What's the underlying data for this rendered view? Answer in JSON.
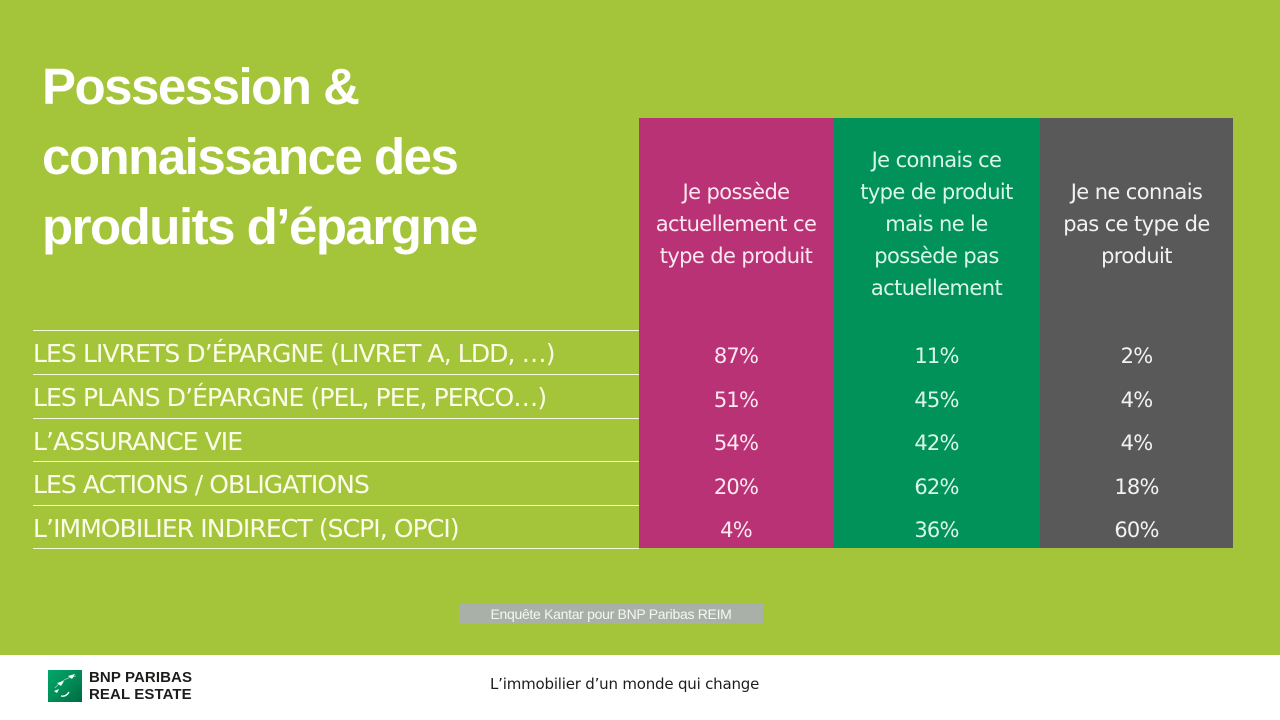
{
  "title": {
    "lines": [
      "Possession &",
      "connaissance des",
      "produits d’épargne"
    ]
  },
  "colors": {
    "background": "#a4c43a",
    "col_own": "#b93275",
    "col_know": "#009258",
    "col_unknown": "#595959"
  },
  "columns": [
    {
      "lines": [
        "Je possède",
        "actuellement ce",
        "type de produit"
      ]
    },
    {
      "lines": [
        "Je connais ce",
        "type de produit",
        "mais ne le",
        "possède pas",
        "actuellement"
      ]
    },
    {
      "lines": [
        "Je ne connais",
        "pas ce type de",
        "produit"
      ]
    }
  ],
  "rows": [
    {
      "label": "LES LIVRETS D’ÉPARGNE (LIVRET A, LDD, …)",
      "values": [
        "87%",
        "11%",
        "2%"
      ]
    },
    {
      "label": "LES PLANS D’ÉPARGNE (PEL, PEE, PERCO…)",
      "values": [
        "51%",
        "45%",
        "4%"
      ]
    },
    {
      "label": "L’ASSURANCE VIE",
      "values": [
        "54%",
        "42%",
        "4%"
      ]
    },
    {
      "label": "LES ACTIONS / OBLIGATIONS",
      "values": [
        "20%",
        "62%",
        "18%"
      ]
    },
    {
      "label": "L’IMMOBILIER INDIRECT (SCPI, OPCI)",
      "values": [
        "4%",
        "36%",
        "60%"
      ]
    }
  ],
  "source": "Enquête Kantar pour BNP Paribas REIM",
  "footer": {
    "brand_lines": [
      "BNP PARIBAS",
      "REAL ESTATE"
    ],
    "logo_icon": "bnp-stars-logo",
    "tagline": "L’immobilier d’un monde qui change"
  }
}
